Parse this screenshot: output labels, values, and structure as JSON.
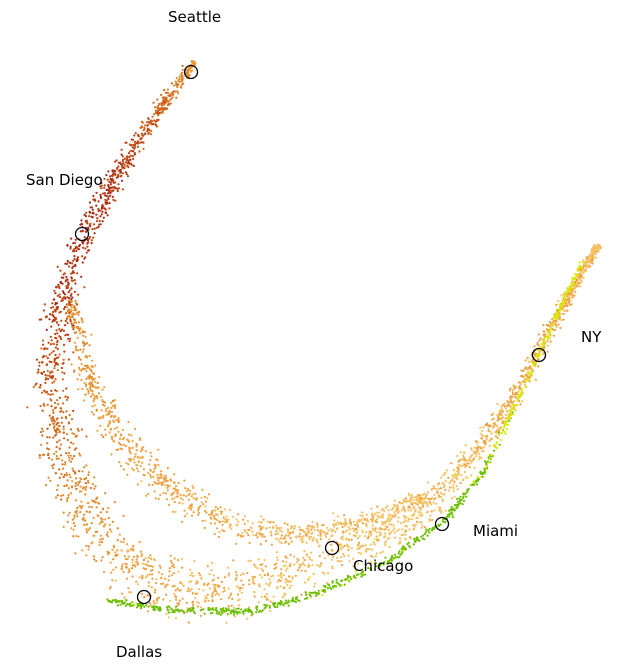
{
  "chart_data": {
    "type": "scatter",
    "title": "",
    "xlabel": "",
    "ylabel": "",
    "axes_visible": false,
    "grid": false,
    "legend": "none",
    "description_of_points": "thousands of small colored dots forming a crescent-shaped embedding; color varies from dark red-brown through orange and light orange to yellow and green",
    "color_scale": [
      "#a52a1a",
      "#c0440f",
      "#d2691e",
      "#e08a2a",
      "#f0a040",
      "#f5c060",
      "#ffe030",
      "#d8e800",
      "#6cbf00"
    ],
    "landmarks": [
      {
        "name": "Seattle"
      },
      {
        "name": "San Diego"
      },
      {
        "name": "NY"
      },
      {
        "name": "Miami"
      },
      {
        "name": "Chicago"
      },
      {
        "name": "Dallas"
      }
    ]
  }
}
